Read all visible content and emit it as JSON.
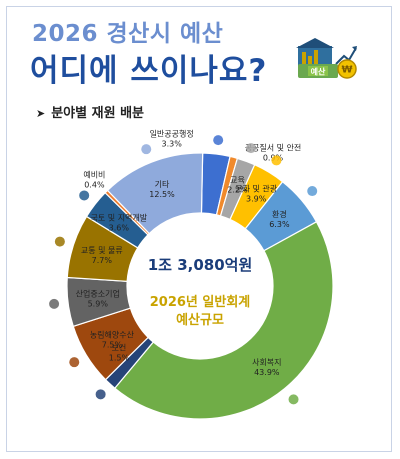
{
  "header": {
    "title_line1": "2026 경산시 예산",
    "title_line2": "어디에 쓰이나요?",
    "subtitle": "분야별 재원 배분",
    "logo_text": "예산"
  },
  "center": {
    "total": "1조 3,080억원",
    "caption_line1": "2026년 일반회계",
    "caption_line2": "예산규모"
  },
  "colors": {
    "title_light": "#6b8ecf",
    "title_dark": "#1f4e9e",
    "accent_gold": "#c9a300"
  },
  "chart_data": {
    "type": "pie",
    "variant": "donut",
    "unit": "%",
    "slices": [
      {
        "label": "일반공공행정",
        "value": 3.3,
        "display": "3.3%",
        "color": "#3d6fd0",
        "icon": "government-building-icon"
      },
      {
        "label": "공공질서 및 안전",
        "value": 0.9,
        "display": "0.9%",
        "color": "#f08a2c",
        "icon": "police-badge-icon"
      },
      {
        "label": "교육",
        "value": 2.2,
        "display": "2.2%",
        "color": "#a6a6a6",
        "icon": "graduation-cap-icon"
      },
      {
        "label": "문화 및 관광",
        "value": 3.9,
        "display": "3.9%",
        "color": "#ffc000",
        "icon": "tourist-icon"
      },
      {
        "label": "환경",
        "value": 6.3,
        "display": "6.3%",
        "color": "#5b9bd5",
        "icon": "tree-icon"
      },
      {
        "label": "사회복지",
        "value": 43.9,
        "display": "43.9%",
        "color": "#70ad47",
        "icon": "family-icon"
      },
      {
        "label": "보건",
        "value": 1.5,
        "display": "1.5%",
        "color": "#264478",
        "icon": "medical-cross-icon"
      },
      {
        "label": "농림해양수산",
        "value": 7.5,
        "display": "7.5%",
        "color": "#9e480e",
        "icon": "leaf-icon"
      },
      {
        "label": "산업중소기업",
        "value": 5.9,
        "display": "5.9%",
        "color": "#636363",
        "icon": "factory-icon"
      },
      {
        "label": "교통 및 물류",
        "value": 7.7,
        "display": "7.7%",
        "color": "#997300",
        "icon": "bus-icon"
      },
      {
        "label": "국토 및 지역개발",
        "value": 3.6,
        "display": "3.6%",
        "color": "#255e91",
        "icon": "crane-icon"
      },
      {
        "label": "예비비",
        "value": 0.4,
        "display": "0.4%",
        "color": "#ed7d31",
        "icon": "warning-icon"
      },
      {
        "label": "기타",
        "value": 12.5,
        "display": "12.5%",
        "color": "#8faadc",
        "icon": "document-icon"
      }
    ]
  }
}
